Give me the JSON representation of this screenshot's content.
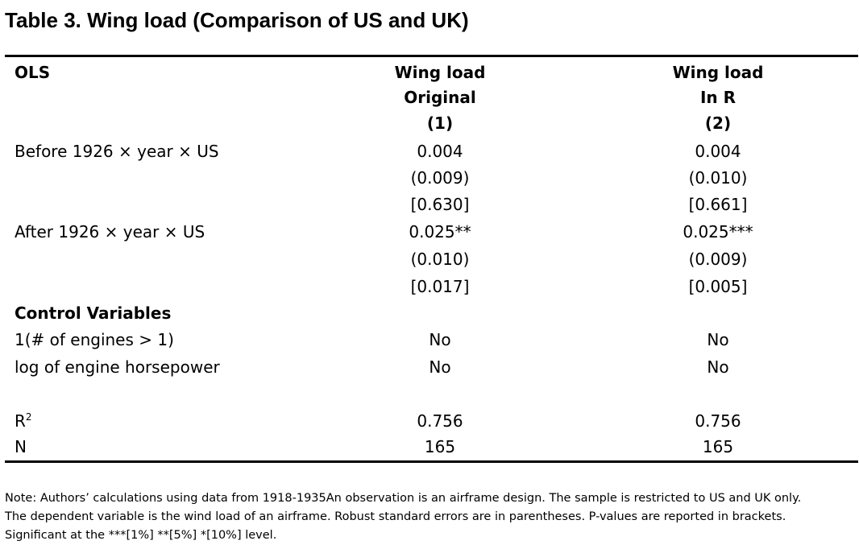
{
  "title": "Table 3. Wing load (Comparison of US and UK)",
  "header": {
    "model_label": "OLS",
    "columns": [
      {
        "line1": "Wing load",
        "line2": "Original",
        "line3": "(1)"
      },
      {
        "line1": "Wing load",
        "line2": "In R",
        "line3": "(2)"
      }
    ]
  },
  "rows": {
    "before": {
      "label": "Before 1926 × year × US",
      "coef": [
        "0.004",
        "0.004"
      ],
      "se": [
        "(0.009)",
        "(0.010)"
      ],
      "p": [
        "[0.630]",
        "[0.661]"
      ]
    },
    "after": {
      "label": "After 1926 × year × US",
      "coef": [
        "0.025**",
        "0.025***"
      ],
      "se": [
        "(0.010)",
        "(0.009)"
      ],
      "p": [
        "[0.017]",
        "[0.005]"
      ]
    }
  },
  "controls": {
    "heading": "Control Variables",
    "items": [
      {
        "label": "1(# of engines > 1)",
        "values": [
          "No",
          "No"
        ]
      },
      {
        "label": "log of engine horsepower",
        "values": [
          "No",
          "No"
        ]
      }
    ]
  },
  "stats": {
    "r2": {
      "label": "R",
      "sup": "2",
      "values": [
        "0.756",
        "0.756"
      ]
    },
    "n": {
      "label": "N",
      "values": [
        "165",
        "165"
      ]
    }
  },
  "note": {
    "line1": "Note: Authors’ calculations using data from 1918-1935An observation is an airframe design. The sample is restricted to US and UK only.",
    "line2": "The dependent variable is the wind load of an airframe. Robust standard errors are in parentheses. P-values are reported in brackets.",
    "line3": "Significant at the ***[1%] **[5%] *[10%] level."
  }
}
